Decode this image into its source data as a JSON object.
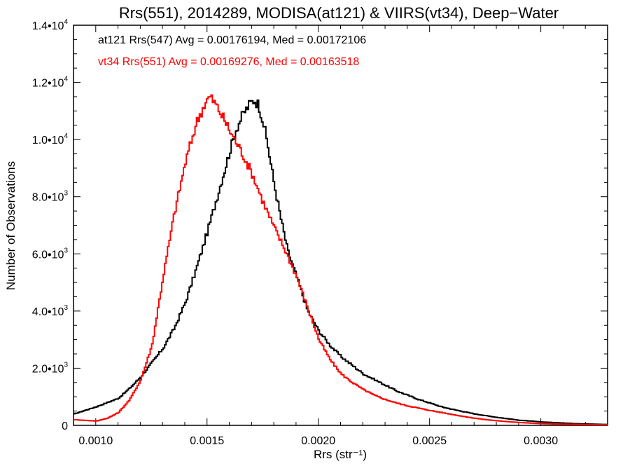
{
  "chart_data": {
    "type": "line",
    "title": "Rrs(551), 2014289, MODISA(at121) & VIIRS(vt34), Deep−Water",
    "xlabel": "Rrs (str⁻¹)",
    "ylabel": "Number of Observations",
    "xlim": [
      0.0009,
      0.0033
    ],
    "ylim": [
      0,
      14000
    ],
    "grid": false,
    "x_ticks": [
      {
        "value": 0.001,
        "label": "0.0010"
      },
      {
        "value": 0.0015,
        "label": "0.0015"
      },
      {
        "value": 0.002,
        "label": "0.0020"
      },
      {
        "value": 0.0025,
        "label": "0.0025"
      },
      {
        "value": 0.003,
        "label": "0.0030"
      }
    ],
    "y_ticks": [
      {
        "value": 0,
        "mant": "0",
        "exp": ""
      },
      {
        "value": 2000,
        "mant": "2.0•10",
        "exp": "3"
      },
      {
        "value": 4000,
        "mant": "4.0•10",
        "exp": "3"
      },
      {
        "value": 6000,
        "mant": "6.0•10",
        "exp": "3"
      },
      {
        "value": 8000,
        "mant": "8.0•10",
        "exp": "3"
      },
      {
        "value": 10000,
        "mant": "1.0•10",
        "exp": "4"
      },
      {
        "value": 12000,
        "mant": "1.2•10",
        "exp": "4"
      },
      {
        "value": 14000,
        "mant": "1.4•10",
        "exp": "4"
      }
    ],
    "legend_position": "top-left",
    "legend": [
      {
        "text": "at121 Rrs(547) Avg = 0.00176194, Med = 0.00172106",
        "color": "#000000"
      },
      {
        "text": "vt34 Rrs(551) Avg = 0.00169276, Med = 0.00163518",
        "color": "#ff0000"
      }
    ],
    "series": [
      {
        "color": "#000000",
        "style": "step",
        "x": [
          0.0009,
          0.001,
          0.0011,
          0.00115,
          0.0012,
          0.00125,
          0.0013,
          0.00135,
          0.0014,
          0.00145,
          0.0015,
          0.00155,
          0.0016,
          0.00163,
          0.00166,
          0.00169,
          0.00171,
          0.00173,
          0.00175,
          0.00177,
          0.0018,
          0.00183,
          0.00186,
          0.0019,
          0.00195,
          0.002,
          0.00205,
          0.0021,
          0.00215,
          0.0022,
          0.00225,
          0.0023,
          0.00235,
          0.0024,
          0.00245,
          0.0025,
          0.00255,
          0.0026,
          0.00265,
          0.0027,
          0.00275,
          0.0028,
          0.00285,
          0.0029,
          0.00295,
          0.003,
          0.00305,
          0.0031,
          0.00315,
          0.0032,
          0.00325,
          0.0033
        ],
        "y": [
          400,
          650,
          950,
          1300,
          1700,
          2200,
          2700,
          3400,
          4300,
          5500,
          6800,
          8200,
          9600,
          10400,
          10900,
          11250,
          11400,
          11200,
          10600,
          9800,
          8400,
          7200,
          6100,
          5200,
          4000,
          3300,
          2800,
          2400,
          2100,
          1800,
          1600,
          1400,
          1200,
          1050,
          900,
          780,
          650,
          560,
          480,
          400,
          340,
          280,
          230,
          180,
          150,
          120,
          100,
          80,
          60,
          50,
          40,
          30
        ]
      },
      {
        "color": "#ff0000",
        "style": "step",
        "x": [
          0.0009,
          0.001,
          0.00105,
          0.0011,
          0.00115,
          0.0012,
          0.00125,
          0.0013,
          0.00135,
          0.0014,
          0.00145,
          0.00149,
          0.00151,
          0.00153,
          0.00156,
          0.0016,
          0.00165,
          0.0017,
          0.00175,
          0.0018,
          0.00185,
          0.0019,
          0.00195,
          0.002,
          0.00205,
          0.0021,
          0.00215,
          0.0022,
          0.00225,
          0.0023,
          0.00235,
          0.0024,
          0.00245,
          0.0025,
          0.00255,
          0.0026,
          0.00265,
          0.0027,
          0.00275,
          0.0028,
          0.00285,
          0.0029,
          0.00295,
          0.003,
          0.00305,
          0.0031,
          0.00315,
          0.0032,
          0.00325,
          0.0033
        ],
        "y": [
          200,
          150,
          250,
          450,
          900,
          1600,
          2800,
          5200,
          7400,
          9200,
          10600,
          11300,
          11500,
          11300,
          10900,
          10300,
          9600,
          8800,
          7800,
          6900,
          6100,
          5200,
          4100,
          3000,
          2300,
          1800,
          1500,
          1250,
          1050,
          900,
          780,
          680,
          600,
          520,
          450,
          380,
          310,
          250,
          200,
          160,
          130,
          100,
          80,
          60,
          50,
          40,
          35,
          30,
          25,
          20
        ]
      }
    ]
  }
}
